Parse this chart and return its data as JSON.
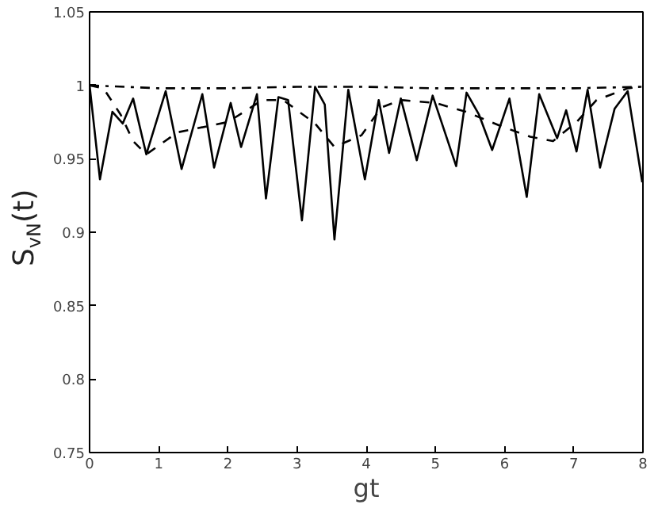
{
  "chart_data": {
    "type": "line",
    "xlabel": "gt",
    "ylabel": "S$_{vN}$(t)",
    "xlim": [
      0,
      8
    ],
    "ylim": [
      0.75,
      1.05
    ],
    "xticks": [
      0,
      1,
      2,
      3,
      4,
      5,
      6,
      7,
      8
    ],
    "yticks": [
      0.75,
      0.8,
      0.85,
      0.9,
      0.95,
      1,
      1.05
    ],
    "grid": false,
    "series": [
      {
        "color": "#000000",
        "line_style": "solid",
        "x": [
          0,
          0.15,
          0.33,
          0.48,
          0.63,
          0.82,
          1.1,
          1.33,
          1.63,
          1.8,
          2.04,
          2.19,
          2.42,
          2.55,
          2.73,
          2.87,
          3.07,
          3.26,
          3.4,
          3.54,
          3.74,
          3.98,
          4.18,
          4.33,
          4.5,
          4.73,
          4.96,
          5.3,
          5.45,
          5.63,
          5.82,
          6.07,
          6.32,
          6.5,
          6.76,
          6.89,
          7.04,
          7.2,
          7.38,
          7.59,
          7.78,
          7.99
        ],
        "values": [
          1,
          0.936,
          0.982,
          0.974,
          0.991,
          0.953,
          0.996,
          0.943,
          0.994,
          0.944,
          0.988,
          0.958,
          0.994,
          0.923,
          0.992,
          0.99,
          0.908,
          0.999,
          0.987,
          0.895,
          0.997,
          0.936,
          0.99,
          0.954,
          0.991,
          0.949,
          0.993,
          0.945,
          0.995,
          0.98,
          0.956,
          0.991,
          0.924,
          0.994,
          0.964,
          0.983,
          0.955,
          0.997,
          0.944,
          0.984,
          0.996,
          0.934
        ]
      },
      {
        "color": "#000000",
        "line_style": "dashed",
        "x": [
          0,
          0.2,
          0.45,
          0.63,
          0.82,
          1.27,
          2.0,
          2.5,
          2.8,
          3.26,
          3.54,
          3.93,
          4.22,
          4.5,
          5.0,
          5.44,
          5.96,
          6.37,
          6.7,
          7.04,
          7.33,
          7.78,
          8
        ],
        "values": [
          1,
          0.998,
          0.98,
          0.962,
          0.953,
          0.968,
          0.975,
          0.99,
          0.99,
          0.974,
          0.958,
          0.966,
          0.985,
          0.99,
          0.988,
          0.982,
          0.972,
          0.965,
          0.962,
          0.975,
          0.99,
          0.998,
          0.999
        ]
      },
      {
        "color": "#000000",
        "line_style": "dashdot",
        "x": [
          0,
          1,
          2,
          3,
          4,
          5,
          6,
          7,
          8
        ],
        "values": [
          1,
          0.998,
          0.998,
          0.999,
          0.999,
          0.998,
          0.998,
          0.998,
          0.999
        ]
      }
    ]
  }
}
